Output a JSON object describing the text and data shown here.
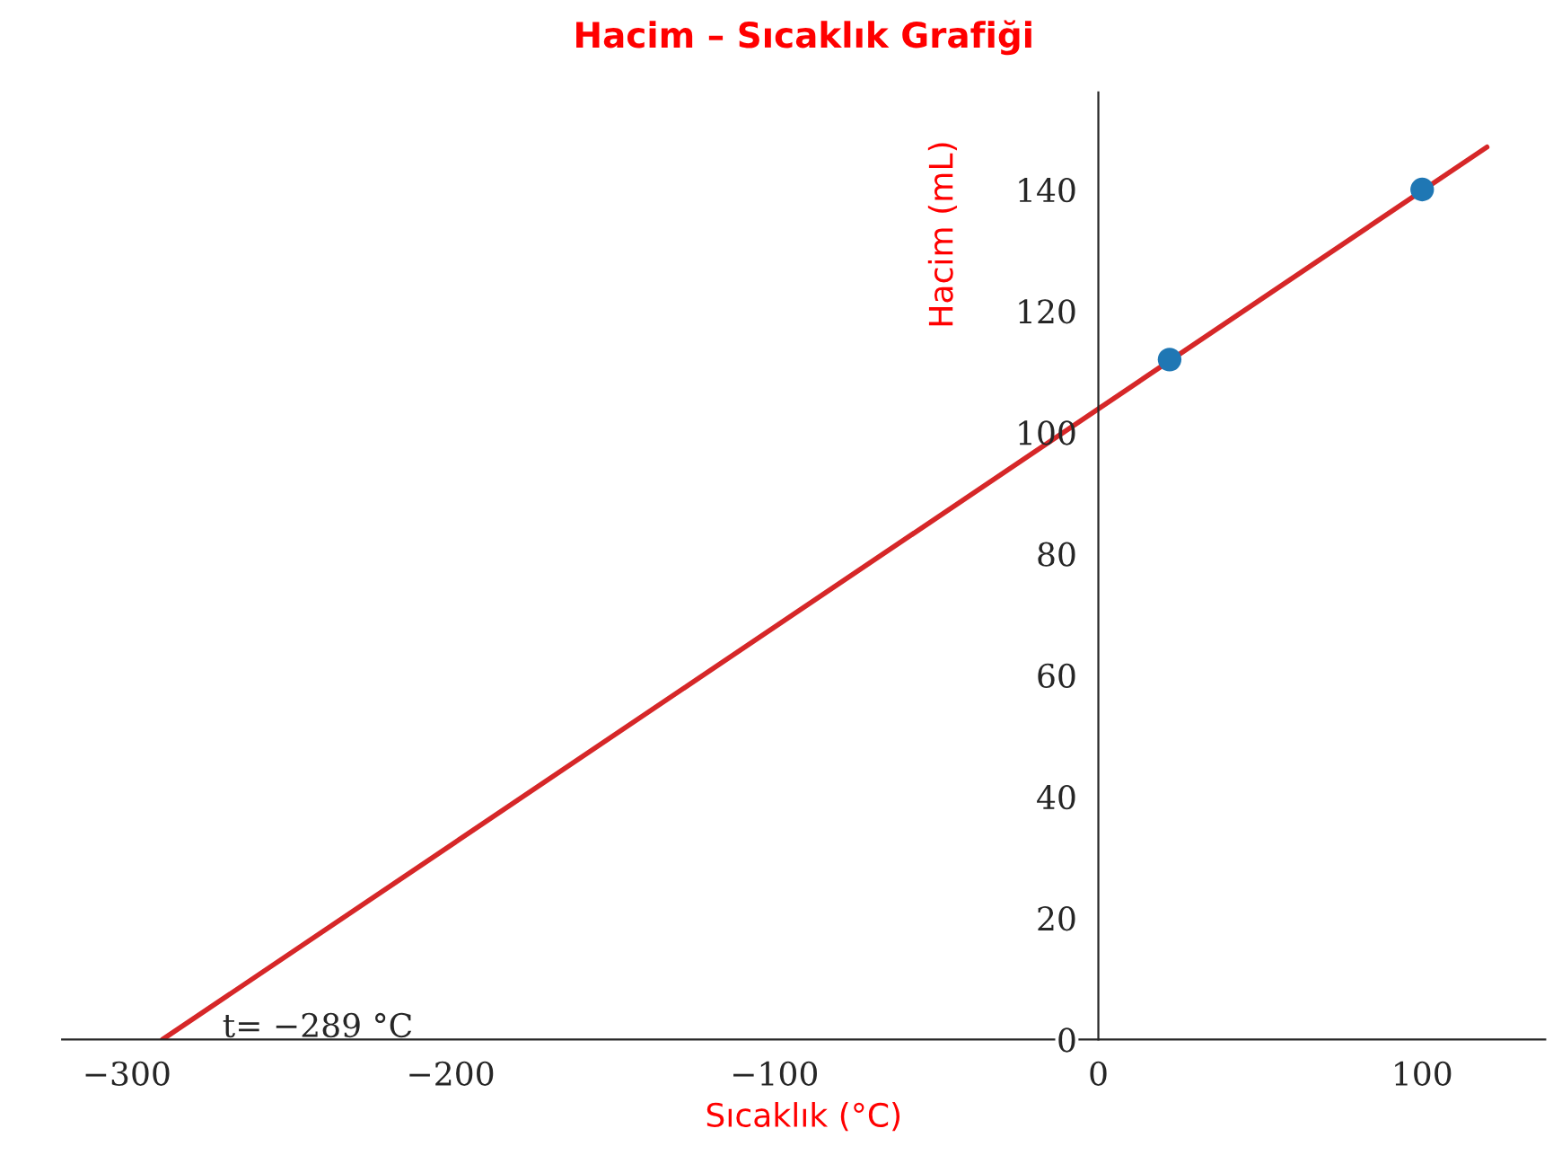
{
  "chart_data": {
    "type": "scatter",
    "title": "Hacim – Sıcaklık Grafiği",
    "xlabel": "Sıcaklık (°C)",
    "ylabel": "Hacim (mL)",
    "xlim": [
      -320,
      138
    ],
    "ylim": [
      0,
      156
    ],
    "xticks": [
      {
        "value": -300,
        "label": "−300"
      },
      {
        "value": -200,
        "label": "−200"
      },
      {
        "value": -100,
        "label": "−100"
      },
      0,
      100
    ],
    "yticks": [
      0,
      20,
      40,
      60,
      80,
      100,
      120,
      140
    ],
    "series": [
      {
        "color": "#1f77b4",
        "x": [
          22,
          100
        ],
        "values": [
          112,
          140
        ],
        "marker": "circle"
      },
      {
        "type": "line",
        "color": "#d62728",
        "x": [
          -289,
          120
        ],
        "values": [
          0,
          147
        ],
        "line_style": "solid"
      }
    ],
    "annotations": [
      {
        "text": "t= −289 °C",
        "x": -289,
        "y": 0
      }
    ],
    "grid": false,
    "legend": false
  }
}
